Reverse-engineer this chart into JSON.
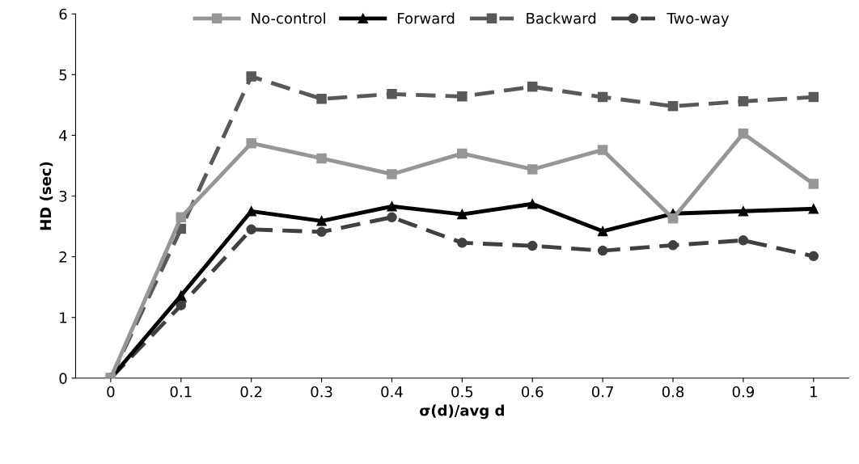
{
  "chart_data": {
    "type": "line",
    "xlabel": "σ(d)/avg d",
    "ylabel": "HD (sec)",
    "categories": [
      "0",
      "0.1",
      "0.2",
      "0.3",
      "0.4",
      "0.5",
      "0.6",
      "0.7",
      "0.8",
      "0.9",
      "1"
    ],
    "series": [
      {
        "name": "No-control",
        "color": "#969696",
        "marker": "square",
        "line_style": "solid",
        "values": [
          0,
          2.65,
          3.87,
          3.62,
          3.36,
          3.7,
          3.44,
          3.76,
          2.63,
          4.03,
          3.2
        ]
      },
      {
        "name": "Forward",
        "color": "#000000",
        "marker": "triangle",
        "line_style": "solid",
        "values": [
          0,
          1.36,
          2.75,
          2.59,
          2.83,
          2.7,
          2.87,
          2.42,
          2.71,
          2.75,
          2.79
        ]
      },
      {
        "name": "Backward",
        "color": "#595959",
        "marker": "square",
        "line_style": "dashed",
        "values": [
          0,
          2.46,
          4.97,
          4.6,
          4.68,
          4.64,
          4.8,
          4.63,
          4.48,
          4.56,
          4.63
        ]
      },
      {
        "name": "Two-way",
        "color": "#404040",
        "marker": "circle",
        "line_style": "dashed",
        "values": [
          0,
          1.2,
          2.45,
          2.41,
          2.65,
          2.23,
          2.18,
          2.1,
          2.19,
          2.27,
          2.01
        ]
      }
    ],
    "ylim": [
      0,
      6
    ],
    "yticks": [
      0,
      1,
      2,
      3,
      4,
      5,
      6
    ],
    "grid": false,
    "legend": "top"
  }
}
